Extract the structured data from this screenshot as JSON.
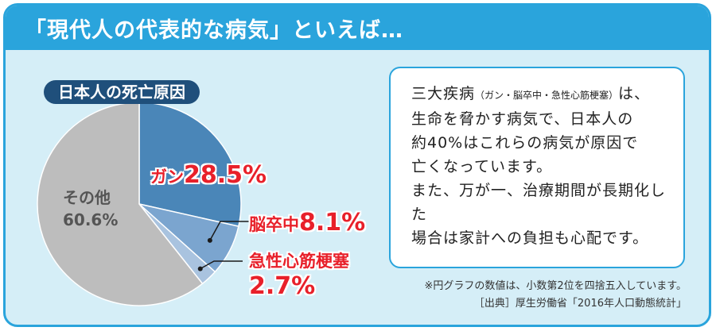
{
  "header": {
    "title": "「現代人の代表的な病気」といえば…"
  },
  "chart_data": {
    "type": "pie",
    "title": "日本人の死亡原因",
    "slices": [
      {
        "name": "ガン",
        "value": 28.5,
        "label": "28.5%",
        "color": "#4a86b8"
      },
      {
        "name": "脳卒中",
        "value": 8.1,
        "label": "8.1%",
        "color": "#7ba5cf"
      },
      {
        "name": "急性心筋梗塞",
        "value": 2.7,
        "label": "2.7%",
        "color": "#a9c3df"
      },
      {
        "name": "その他",
        "value": 60.6,
        "label": "60.6%",
        "color": "#bdbdbd"
      }
    ]
  },
  "bubble": {
    "line1_main": "三大疾病",
    "line1_small": "（ガン・脳卒中・急性心筋梗塞）",
    "line1_end": "は、",
    "line2": "生命を脅かす病気で、日本人の",
    "line3": "約40%はこれらの病気が原因で",
    "line4": "亡くなっています。",
    "line5": "また、万が一、治療期間が長期化した",
    "line6": "場合は家計への負担も心配です。"
  },
  "notes": {
    "rounding": "※円グラフの数値は、小数第2位を四捨五入しています。",
    "source": "［出典］厚生労働省「2016年人口動態統計」"
  },
  "colors": {
    "accent": "#2aa4dc",
    "panel": "#d5eef7",
    "label_red": "#e8202a",
    "pill": "#1f4f7b"
  }
}
